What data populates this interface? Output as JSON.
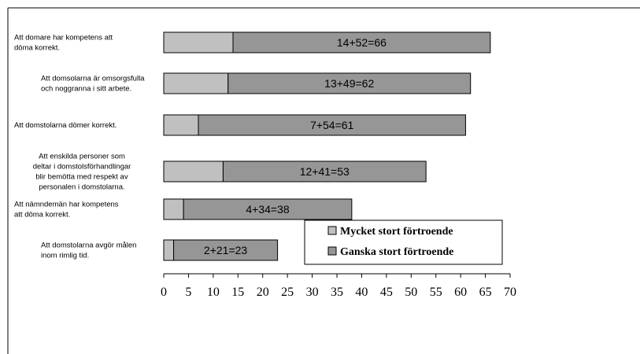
{
  "chart_data": {
    "type": "bar",
    "orientation": "horizontal",
    "stacked": true,
    "categories": [
      [
        "Att domare har kompetens att",
        "döma korrekt."
      ],
      [
        "Att domsolarna är omsorgsfulla",
        "och noggranna i sitt arbete."
      ],
      [
        "Att domstolarna dömer korrekt."
      ],
      [
        "Att enskilda personer som",
        "deltar i domstolsförhandlingar",
        "blir bemötta med respekt av",
        "personalen i domstolarna."
      ],
      [
        "Att nämndemän har kompetens",
        "att döma korrekt."
      ],
      [
        "Att domstolarna avgör målen",
        "inom rimlig tid."
      ]
    ],
    "series": [
      {
        "name": "Mycket stort förtroende",
        "values": [
          14,
          13,
          7,
          12,
          4,
          2
        ],
        "color": "#c0c0c0"
      },
      {
        "name": "Ganska stort förtroende",
        "values": [
          52,
          49,
          54,
          41,
          34,
          21
        ],
        "color": "#969696"
      }
    ],
    "data_labels": [
      "14+52=66",
      "13+49=62",
      "7+54=61",
      "12+41=53",
      "4+34=38",
      "2+21=23"
    ],
    "xlim": [
      0,
      70
    ],
    "xticks": [
      0,
      5,
      10,
      15,
      20,
      25,
      30,
      35,
      40,
      45,
      50,
      55,
      60,
      65,
      70
    ],
    "grid": false,
    "legend_position": "lower-right",
    "title": "",
    "xlabel": "",
    "ylabel": ""
  }
}
